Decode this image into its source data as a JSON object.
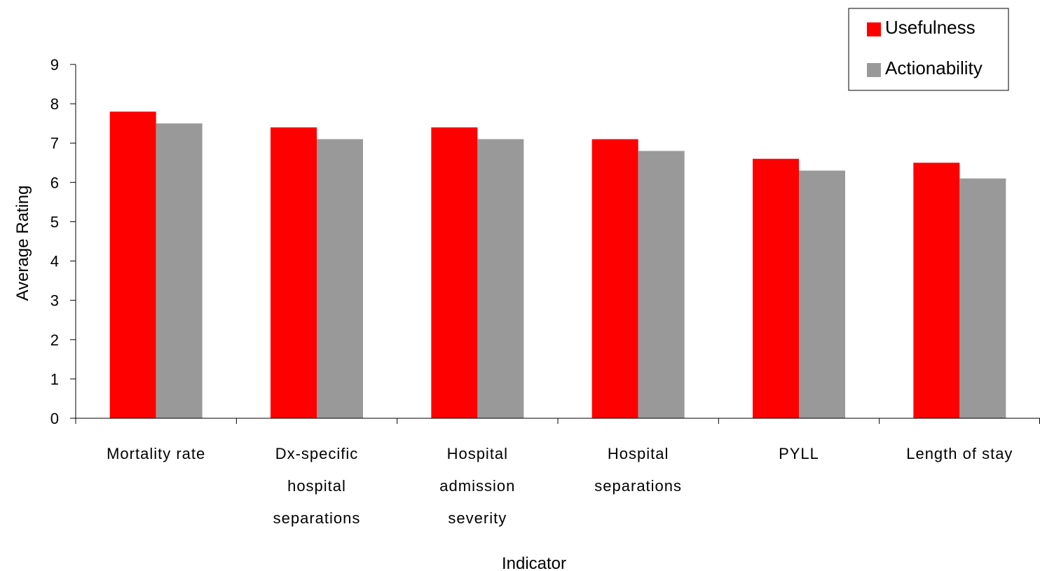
{
  "chart_data": {
    "type": "bar",
    "title": "",
    "xlabel": "Indicator",
    "ylabel": "Average Rating",
    "ylim": [
      0,
      9
    ],
    "yticks": [
      "0",
      "1",
      "2",
      "3",
      "4",
      "5",
      "6",
      "7",
      "8",
      "9"
    ],
    "grid": false,
    "legend_position": "top-right",
    "categories": [
      "Mortality rate",
      "Dx-specific hospital separations",
      "Hospital admission severity",
      "Hospital separations",
      "PYLL",
      "Length of stay"
    ],
    "series": [
      {
        "name": "Usefulness",
        "color": "#ff0000",
        "values": [
          7.8,
          7.4,
          7.4,
          7.1,
          6.6,
          6.5
        ]
      },
      {
        "name": "Actionability",
        "color": "#999999",
        "values": [
          7.5,
          7.1,
          7.1,
          6.8,
          6.3,
          6.1
        ]
      }
    ]
  }
}
